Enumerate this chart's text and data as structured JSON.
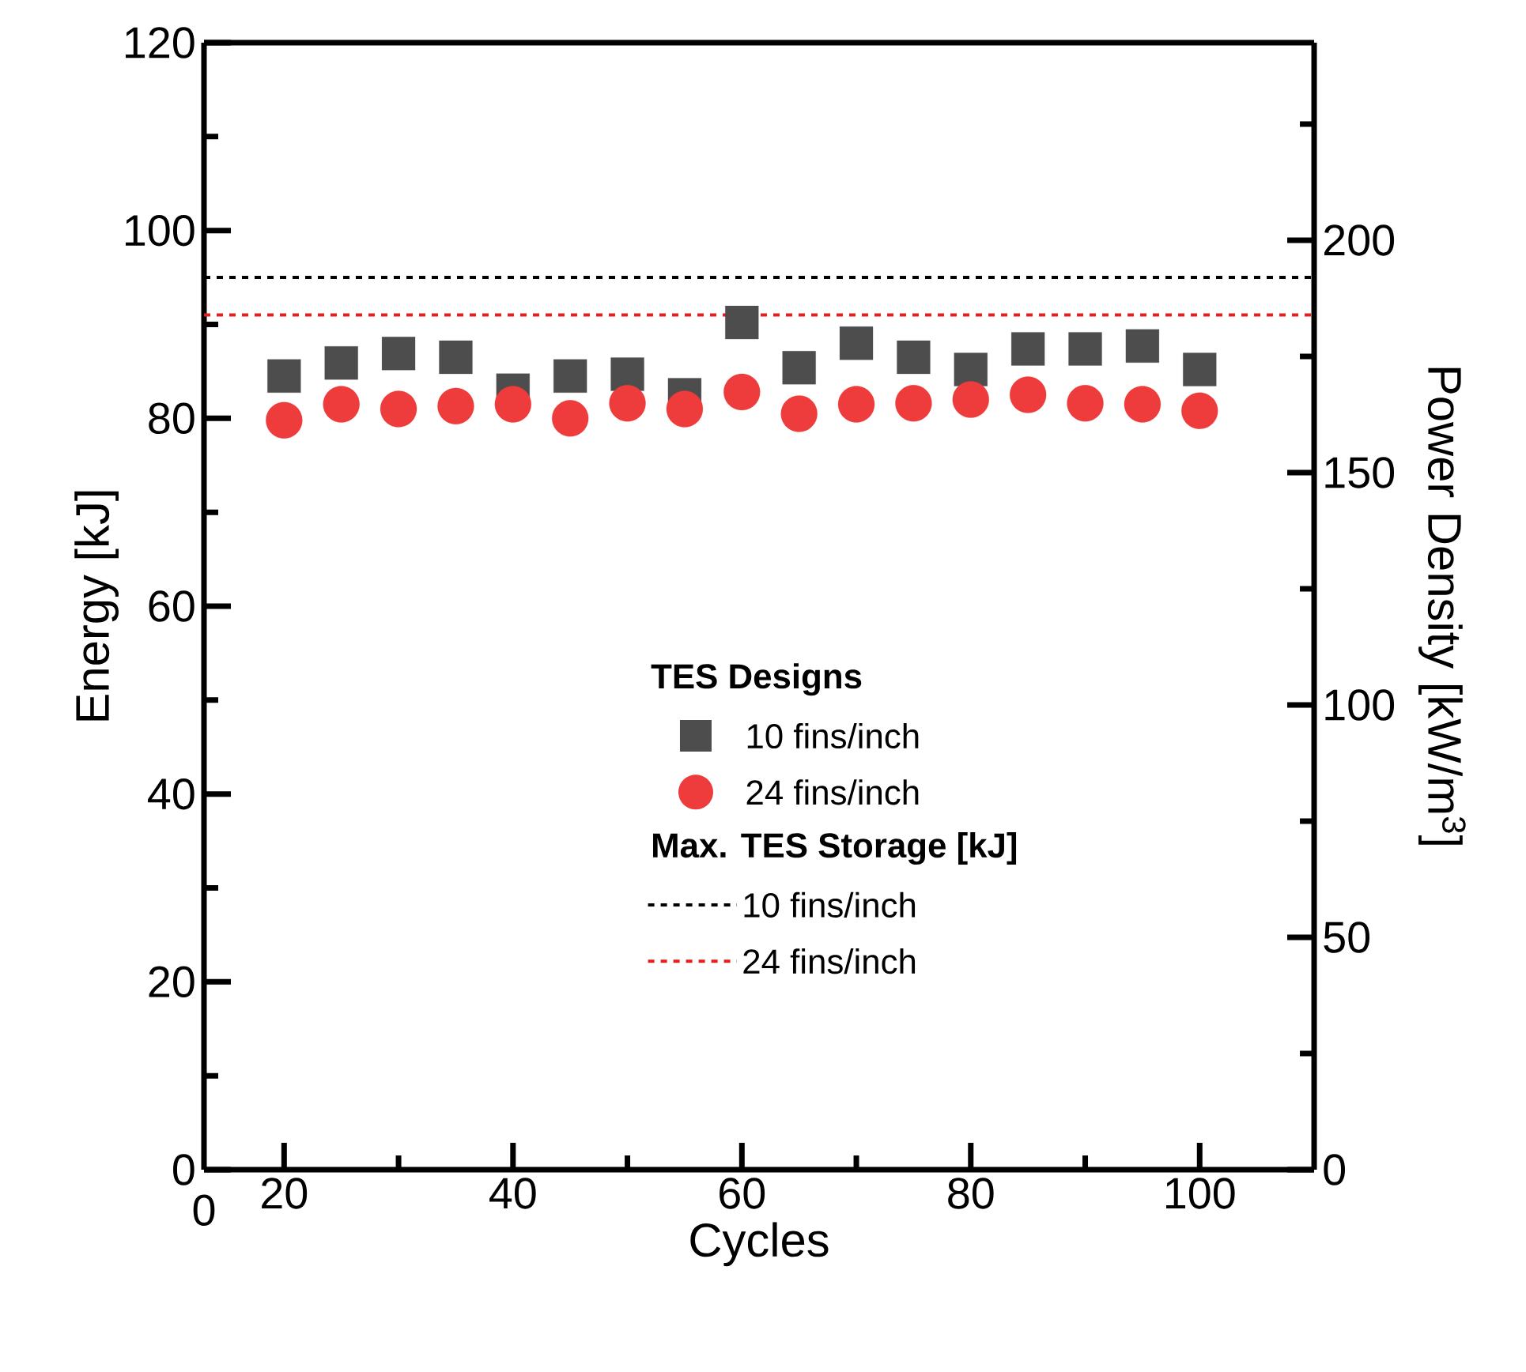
{
  "chart_data": {
    "type": "scatter",
    "xlabel": "Cycles",
    "ylabel": "Energy [kJ]",
    "y2label": "Power Density [kW/m$^{3}$]",
    "legend_title": "TES Designs",
    "legend": "right",
    "grid": false,
    "x": [
      20,
      25,
      30,
      35,
      40,
      45,
      50,
      55,
      60,
      65,
      70,
      75,
      80,
      85,
      90,
      95,
      100
    ],
    "series": [
      {
        "name": "10 fins/inch",
        "color": "#4d4d4d",
        "marker": "square",
        "values": [
          84.5,
          85.9,
          86.9,
          86.5,
          83.0,
          84.5,
          84.7,
          82.5,
          90.2,
          85.4,
          88.0,
          86.5,
          85.2,
          87.4,
          87.4,
          87.7,
          85.2
        ]
      },
      {
        "name": "24 fins/inch",
        "color": "#ee3b3b",
        "marker": "circle",
        "values": [
          79.8,
          81.5,
          81.0,
          81.3,
          81.5,
          80.0,
          81.6,
          81.0,
          82.8,
          80.5,
          81.5,
          81.6,
          82.0,
          82.5,
          81.6,
          81.5,
          80.8
        ]
      }
    ],
    "ref_lines": [
      {
        "axis": "y",
        "value": 95,
        "label": "10 fins/inch",
        "color": "#000000",
        "line_style": "dashed"
      },
      {
        "axis": "y",
        "value": 91,
        "label": "24 fins/inch",
        "color": "#e02020",
        "line_style": "dashed"
      }
    ],
    "annotations": [
      "0",
      "Max. TES Storage [kJ]"
    ],
    "xlim": [
      13,
      110
    ],
    "xticks": [
      20,
      {
        "value": 30,
        "label": null
      },
      40,
      {
        "value": 50,
        "label": null
      },
      60,
      {
        "value": 70,
        "label": null
      },
      80,
      {
        "value": 90,
        "label": null
      },
      100
    ],
    "ylim": [
      0,
      120
    ],
    "yticks": [
      0,
      {
        "value": 10,
        "label": null
      },
      20,
      {
        "value": 30,
        "label": null
      },
      40,
      {
        "value": 50,
        "label": null
      },
      60,
      {
        "value": 70,
        "label": null
      },
      80,
      {
        "value": 90,
        "label": null
      },
      100,
      {
        "value": 110,
        "label": null
      },
      120
    ],
    "y2lim": [
      0,
      242.5
    ],
    "y2ticks": [
      0,
      {
        "value": 25,
        "label": null
      },
      50,
      {
        "value": 75,
        "label": null
      },
      100,
      {
        "value": 125,
        "label": null
      },
      150,
      {
        "value": 175,
        "label": null
      },
      200,
      {
        "value": 225,
        "label": null
      }
    ]
  }
}
